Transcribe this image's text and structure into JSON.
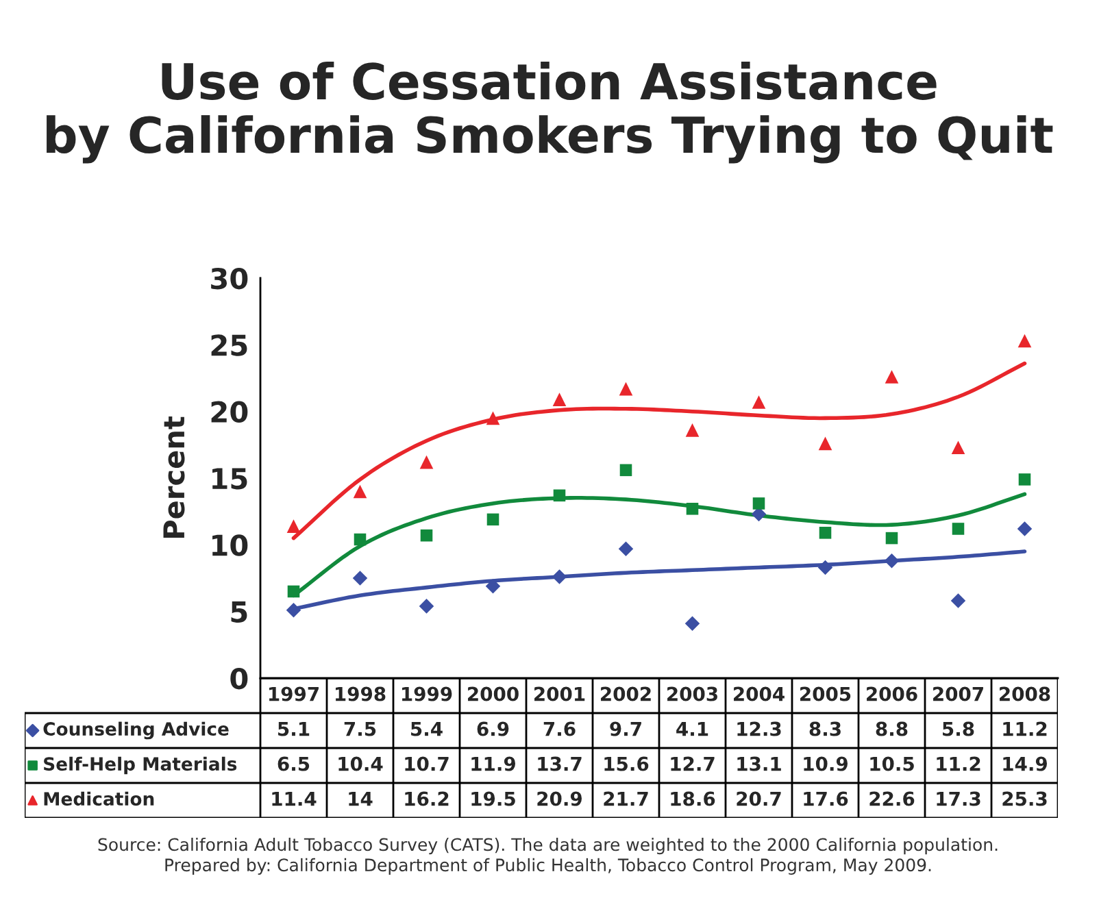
{
  "chart_data": {
    "type": "scatter",
    "title": "Use of Cessation Assistance\nby California Smokers Trying to Quit",
    "ylabel": "Percent",
    "categories": [
      "1997",
      "1998",
      "1999",
      "2000",
      "2001",
      "2002",
      "2003",
      "2004",
      "2005",
      "2006",
      "2007",
      "2008"
    ],
    "series": [
      {
        "name": "Counseling Advice",
        "color": "#3b4fa3",
        "marker": "diamond",
        "values": [
          5.1,
          7.5,
          5.4,
          6.9,
          7.6,
          9.7,
          4.1,
          12.3,
          8.3,
          8.8,
          5.8,
          11.2
        ],
        "value_labels": [
          "5.1",
          "7.5",
          "5.4",
          "6.9",
          "7.6",
          "9.7",
          "4.1",
          "12.3",
          "8.3",
          "8.8",
          "5.8",
          "11.2"
        ]
      },
      {
        "name": "Self-Help Materials",
        "color": "#118a3c",
        "marker": "square",
        "values": [
          6.5,
          10.4,
          10.7,
          11.9,
          13.7,
          15.6,
          12.7,
          13.1,
          10.9,
          10.5,
          11.2,
          14.9
        ],
        "value_labels": [
          "6.5",
          "10.4",
          "10.7",
          "11.9",
          "13.7",
          "15.6",
          "12.7",
          "13.1",
          "10.9",
          "10.5",
          "11.2",
          "14.9"
        ]
      },
      {
        "name": "Medication",
        "color": "#e8262b",
        "marker": "triangle",
        "values": [
          11.4,
          14,
          16.2,
          19.5,
          20.9,
          21.7,
          18.6,
          20.7,
          17.6,
          22.6,
          17.3,
          25.3
        ],
        "value_labels": [
          "11.4",
          "14",
          "16.2",
          "19.5",
          "20.9",
          "21.7",
          "18.6",
          "20.7",
          "17.6",
          "22.6",
          "17.3",
          "25.3"
        ]
      },
      {
        "type": "line",
        "color": "#3b4fa3",
        "marker": "none",
        "values": [
          5.2,
          6.2,
          6.8,
          7.3,
          7.6,
          7.9,
          8.1,
          8.3,
          8.5,
          8.8,
          9.1,
          9.5
        ]
      },
      {
        "type": "line",
        "color": "#118a3c",
        "marker": "none",
        "values": [
          6.2,
          9.9,
          12.0,
          13.1,
          13.5,
          13.4,
          12.9,
          12.2,
          11.7,
          11.5,
          12.2,
          13.8
        ]
      },
      {
        "type": "line",
        "color": "#e8262b",
        "marker": "none",
        "values": [
          10.5,
          14.9,
          17.8,
          19.4,
          20.1,
          20.2,
          20.0,
          19.7,
          19.5,
          19.8,
          21.1,
          23.6
        ]
      }
    ],
    "ylim": [
      0,
      30
    ],
    "yticks": [
      0,
      5,
      10,
      15,
      20,
      25,
      30
    ],
    "grid": false,
    "legend": "bottom left",
    "annotations": [
      "Source: California Adult Tobacco Survey (CATS). The data are weighted to the 2000 California population.\nPrepared by: California Department of Public Health, Tobacco Control Program, May 2009."
    ]
  }
}
